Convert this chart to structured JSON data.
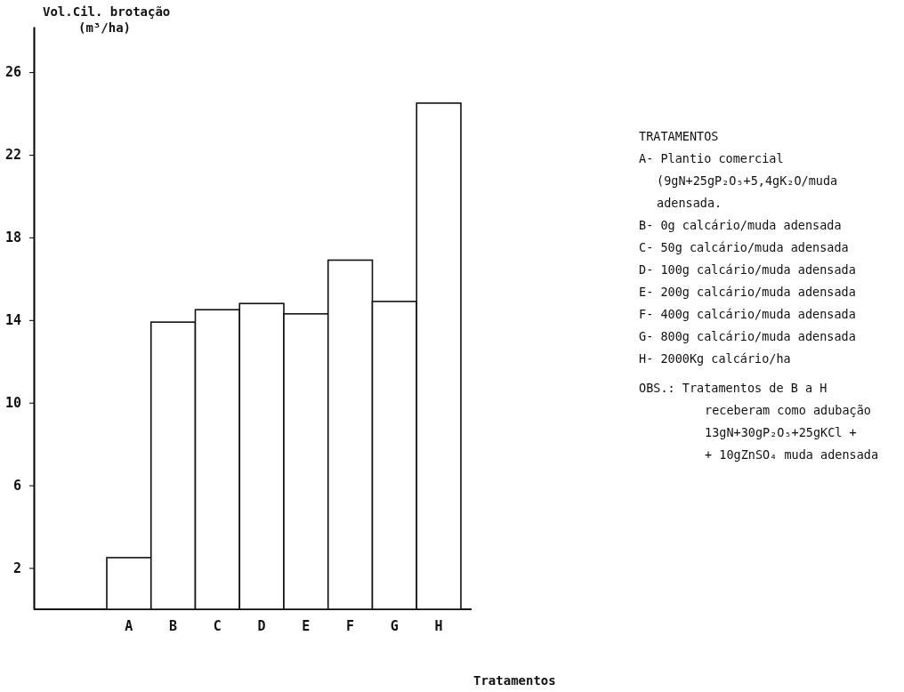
{
  "chart_data": {
    "type": "bar",
    "ylabel": "Vol.Cil. brotação\n(m³/ha)",
    "xlabel": "Tratamentos",
    "categories": [
      "A",
      "B",
      "C",
      "D",
      "E",
      "F",
      "G",
      "H"
    ],
    "values": [
      2.5,
      13.9,
      14.5,
      14.8,
      14.3,
      16.9,
      14.9,
      24.5
    ],
    "color": "#ffffff",
    "ylim": [
      0,
      28.2
    ],
    "yticks": [
      2,
      6,
      10,
      14,
      18,
      22,
      26
    ],
    "grid": false,
    "annotations": [
      "TRATAMENTOS",
      "A- Plantio comercial\n(9gN+25gP₂O₅+5,4gK₂O/muda\nadensada.",
      "B-   0g calcário/muda adensada",
      "C-  50g calcário/muda adensada",
      "D- 100g calcário/muda adensada",
      "E- 200g calcário/muda adensada",
      "F- 400g calcário/muda adensada",
      "G- 800g calcário/muda adensada",
      "H- 2000Kg calcário/ha",
      "OBS.: Tratamentos de B a H\nreceberam como adubação\n13gN+30gP₂O₅+25gKCl +\n+ 10gZnSO₄ muda adensada"
    ]
  }
}
